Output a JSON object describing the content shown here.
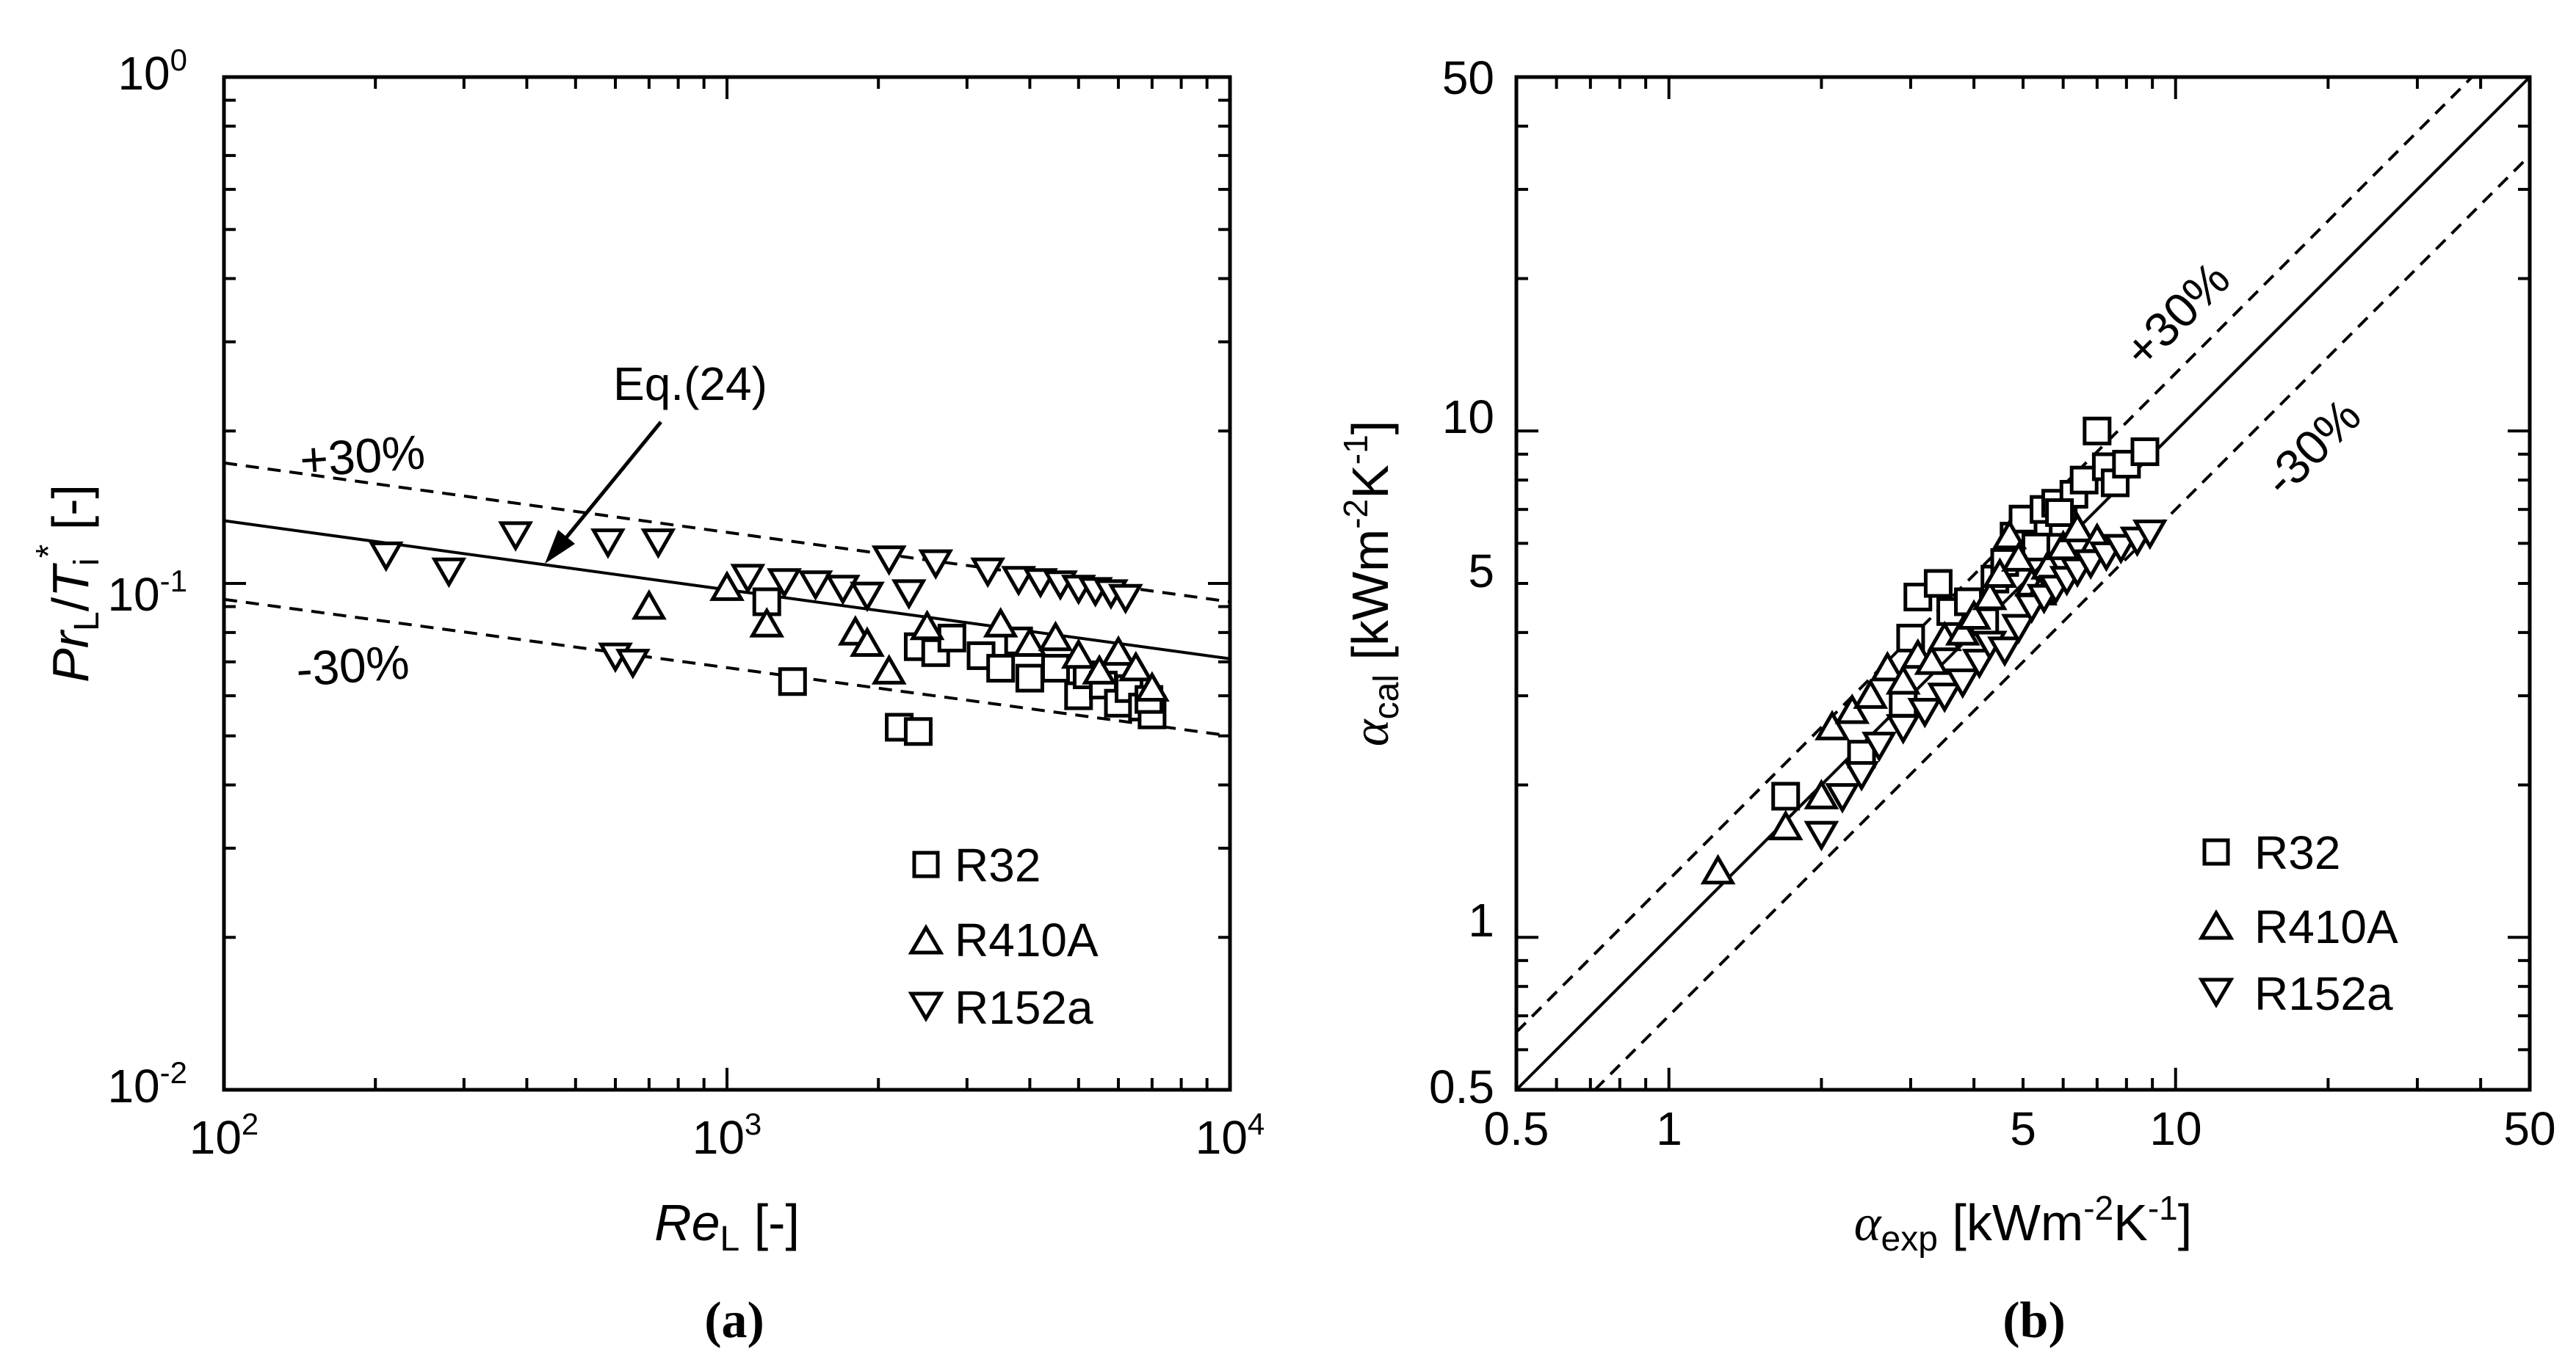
{
  "figure": {
    "caption_a": "(a)",
    "caption_b": "(b)"
  },
  "chart_data": [
    {
      "type": "scatter",
      "panel": "a",
      "xscale": "log",
      "yscale": "log",
      "xlim": [
        100,
        10000
      ],
      "ylim": [
        0.01,
        1
      ],
      "xlabel": {
        "main": "Re",
        "sub": "L",
        "unit": "[-]"
      },
      "ylabel": {
        "main": "Pr",
        "sub": "L",
        "sep": "/",
        "main2": "T",
        "sub2": "i",
        "sup2": "*",
        "unit": "[-]"
      },
      "xticks": [
        {
          "base": "10",
          "exp": "2",
          "value": 100
        },
        {
          "base": "10",
          "exp": "3",
          "value": 1000
        },
        {
          "base": "10",
          "exp": "4",
          "value": 10000
        }
      ],
      "yticks": [
        {
          "base": "10",
          "exp": "-2",
          "value": 0.01
        },
        {
          "base": "10",
          "exp": "-1",
          "value": 0.1
        },
        {
          "base": "10",
          "exp": "0",
          "value": 1
        }
      ],
      "lines": [
        {
          "name": "Eq.(24)",
          "style": "solid",
          "x": [
            100,
            10000
          ],
          "y": [
            0.133,
            0.071
          ]
        },
        {
          "name": "+30%",
          "style": "dashed",
          "x": [
            100,
            10000
          ],
          "y": [
            0.173,
            0.092
          ]
        },
        {
          "name": "-30%",
          "style": "dashed",
          "x": [
            100,
            10000
          ],
          "y": [
            0.093,
            0.05
          ]
        }
      ],
      "annotations": [
        {
          "text": "Eq.(24)",
          "x": 1350,
          "y": 0.31,
          "arrow_to": [
            410,
            0.108
          ]
        },
        {
          "text": "+30%",
          "x": 155,
          "y": 0.19
        },
        {
          "text": "-30%",
          "x": 155,
          "y": 0.062
        }
      ],
      "legend": {
        "position": "bottom-right",
        "entries": [
          "R32",
          "R410A",
          "R152a"
        ]
      },
      "series": [
        {
          "name": "R32",
          "marker": "square",
          "points": [
            [
              1200,
              0.092
            ],
            [
              1350,
              0.064
            ],
            [
              2200,
              0.052
            ],
            [
              2400,
              0.051
            ],
            [
              2400,
              0.075
            ],
            [
              2600,
              0.073
            ],
            [
              2800,
              0.078
            ],
            [
              3200,
              0.072
            ],
            [
              3500,
              0.068
            ],
            [
              3800,
              0.077
            ],
            [
              4000,
              0.065
            ],
            [
              4500,
              0.068
            ],
            [
              5000,
              0.06
            ],
            [
              5200,
              0.066
            ],
            [
              5600,
              0.063
            ],
            [
              6000,
              0.058
            ],
            [
              6300,
              0.062
            ],
            [
              6700,
              0.057
            ],
            [
              7000,
              0.055
            ],
            [
              6900,
              0.059
            ]
          ]
        },
        {
          "name": "R410A",
          "marker": "triangle-up",
          "points": [
            [
              700,
              0.09
            ],
            [
              1000,
              0.098
            ],
            [
              1200,
              0.083
            ],
            [
              1800,
              0.08
            ],
            [
              1900,
              0.076
            ],
            [
              2100,
              0.067
            ],
            [
              2500,
              0.082
            ],
            [
              3500,
              0.083
            ],
            [
              4000,
              0.076
            ],
            [
              4500,
              0.078
            ],
            [
              5000,
              0.072
            ],
            [
              5500,
              0.067
            ],
            [
              6000,
              0.073
            ],
            [
              6500,
              0.068
            ],
            [
              7000,
              0.062
            ]
          ]
        },
        {
          "name": "R152a",
          "marker": "triangle-down",
          "points": [
            [
              210,
              0.114
            ],
            [
              280,
              0.106
            ],
            [
              380,
              0.125
            ],
            [
              580,
              0.121
            ],
            [
              600,
              0.072
            ],
            [
              650,
              0.07
            ],
            [
              730,
              0.121
            ],
            [
              1100,
              0.103
            ],
            [
              1300,
              0.101
            ],
            [
              1500,
              0.1
            ],
            [
              1700,
              0.098
            ],
            [
              1900,
              0.095
            ],
            [
              2100,
              0.112
            ],
            [
              2300,
              0.096
            ],
            [
              2600,
              0.11
            ],
            [
              3300,
              0.106
            ],
            [
              3800,
              0.102
            ],
            [
              4200,
              0.101
            ],
            [
              4600,
              0.1
            ],
            [
              5000,
              0.098
            ],
            [
              5400,
              0.097
            ],
            [
              5800,
              0.096
            ],
            [
              6200,
              0.094
            ]
          ]
        }
      ]
    },
    {
      "type": "scatter",
      "panel": "b",
      "xscale": "log",
      "yscale": "log",
      "xlim": [
        0.5,
        50
      ],
      "ylim": [
        0.5,
        50
      ],
      "xlabel": {
        "main": "α",
        "sub": "exp",
        "unit": "[kWm",
        "unit_sup1": "-2",
        "unit_mid": "K",
        "unit_sup2": "-1",
        "unit_end": "]"
      },
      "ylabel": {
        "main": "α",
        "sub": "cal",
        "unit": "[kWm",
        "unit_sup1": "-2",
        "unit_mid": "K",
        "unit_sup2": "-1",
        "unit_end": "]"
      },
      "xticks": [
        {
          "label": "0.5",
          "value": 0.5
        },
        {
          "label": "1",
          "value": 1
        },
        {
          "label": "5",
          "value": 5
        },
        {
          "label": "10",
          "value": 10
        },
        {
          "label": "50",
          "value": 50
        }
      ],
      "yticks": [
        {
          "label": "0.5",
          "value": 0.5
        },
        {
          "label": "1",
          "value": 1
        },
        {
          "label": "5",
          "value": 5
        },
        {
          "label": "10",
          "value": 10
        },
        {
          "label": "50",
          "value": 50
        }
      ],
      "lines": [
        {
          "name": "y=x",
          "style": "solid",
          "factor": 1.0
        },
        {
          "name": "+30%",
          "style": "dashed",
          "factor": 1.3
        },
        {
          "name": "-30%",
          "style": "dashed",
          "factor": 0.7
        }
      ],
      "annotations": [
        {
          "text": "+30%",
          "x": 13.5,
          "y": 19
        },
        {
          "text": "-30%",
          "x": 16.5,
          "y": 11
        }
      ],
      "legend": {
        "position": "bottom-right",
        "entries": [
          "R32",
          "R410A",
          "R152a"
        ]
      },
      "series": [
        {
          "name": "R32",
          "marker": "square",
          "points": [
            [
              1.7,
              1.9
            ],
            [
              2.4,
              2.3
            ],
            [
              2.9,
              2.9
            ],
            [
              3.0,
              3.9
            ],
            [
              3.1,
              4.7
            ],
            [
              3.4,
              5.0
            ],
            [
              3.6,
              4.4
            ],
            [
              3.9,
              4.6
            ],
            [
              4.2,
              4.2
            ],
            [
              4.4,
              5.1
            ],
            [
              4.6,
              5.5
            ],
            [
              4.8,
              6.2
            ],
            [
              5.0,
              6.7
            ],
            [
              5.3,
              5.9
            ],
            [
              5.5,
              7.0
            ],
            [
              5.8,
              7.2
            ],
            [
              6.0,
              6.6
            ],
            [
              6.3,
              7.5
            ],
            [
              6.6,
              8.0
            ],
            [
              7.0,
              10.0
            ],
            [
              7.3,
              8.5
            ],
            [
              7.6,
              7.9
            ],
            [
              8.0,
              8.6
            ],
            [
              8.7,
              9.1
            ],
            [
              5.9,
              6.9
            ]
          ]
        },
        {
          "name": "R410A",
          "marker": "triangle-up",
          "points": [
            [
              1.25,
              1.35
            ],
            [
              1.7,
              1.65
            ],
            [
              2.0,
              1.9
            ],
            [
              2.1,
              2.6
            ],
            [
              2.3,
              2.8
            ],
            [
              2.5,
              3.0
            ],
            [
              2.7,
              3.4
            ],
            [
              2.9,
              3.2
            ],
            [
              3.1,
              3.6
            ],
            [
              3.3,
              3.5
            ],
            [
              3.5,
              3.9
            ],
            [
              3.8,
              4.0
            ],
            [
              4.0,
              4.3
            ],
            [
              4.3,
              4.7
            ],
            [
              4.5,
              5.2
            ],
            [
              4.7,
              6.2
            ],
            [
              4.9,
              5.6
            ],
            [
              5.2,
              5.0
            ],
            [
              5.6,
              5.4
            ],
            [
              6.0,
              5.9
            ],
            [
              6.4,
              6.4
            ],
            [
              7.0,
              6.1
            ],
            [
              5.4,
              4.8
            ]
          ]
        },
        {
          "name": "R152a",
          "marker": "triangle-down",
          "points": [
            [
              2.0,
              1.6
            ],
            [
              2.2,
              1.9
            ],
            [
              2.4,
              2.1
            ],
            [
              2.6,
              2.4
            ],
            [
              2.9,
              2.6
            ],
            [
              3.2,
              2.8
            ],
            [
              3.5,
              3.0
            ],
            [
              3.8,
              3.2
            ],
            [
              4.1,
              3.5
            ],
            [
              4.3,
              3.8
            ],
            [
              4.6,
              3.7
            ],
            [
              4.9,
              4.1
            ],
            [
              5.2,
              4.5
            ],
            [
              5.5,
              4.7
            ],
            [
              5.8,
              4.9
            ],
            [
              6.1,
              5.1
            ],
            [
              6.4,
              5.3
            ],
            [
              6.8,
              5.5
            ],
            [
              7.3,
              5.7
            ],
            [
              7.8,
              5.9
            ],
            [
              8.4,
              6.1
            ],
            [
              8.9,
              6.3
            ]
          ]
        }
      ]
    }
  ]
}
